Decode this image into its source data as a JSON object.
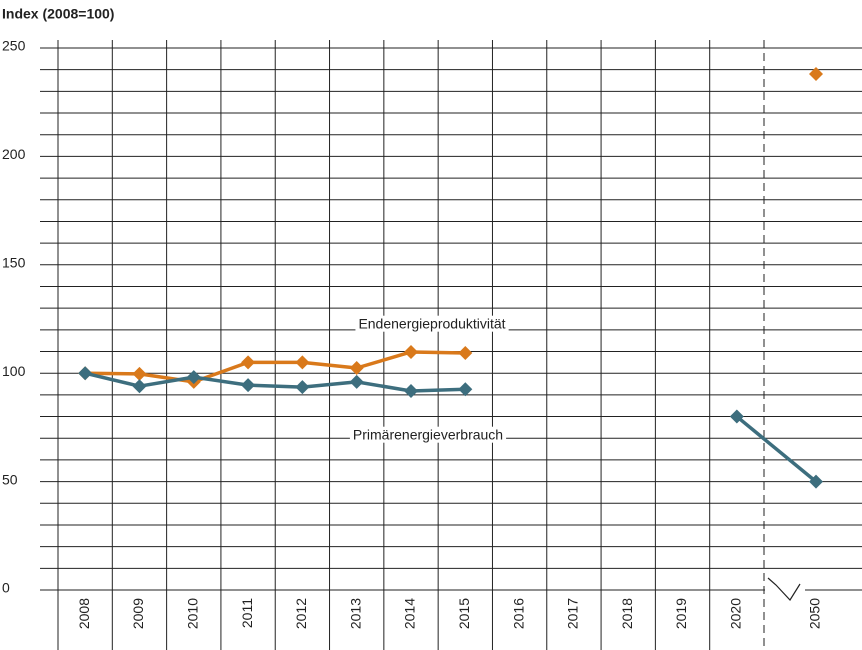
{
  "chart_data": {
    "type": "line",
    "title": "Index (2008=100)",
    "categories": [
      "2008",
      "2009",
      "2010",
      "2011",
      "2012",
      "2013",
      "2014",
      "2015",
      "2016",
      "2017",
      "2018",
      "2019",
      "2020",
      "2050"
    ],
    "series": [
      {
        "name": "Endenergieproduktivität",
        "color": "#d9791b",
        "values": [
          100,
          99.7,
          96,
          105,
          105,
          102.4,
          109.8,
          109.3,
          null,
          null,
          null,
          null,
          null,
          238
        ]
      },
      {
        "name": "Primärenergieverbrauch",
        "color": "#3d6e7e",
        "values": [
          100,
          94,
          98.2,
          94.5,
          93.6,
          96,
          91.8,
          92.6,
          null,
          null,
          null,
          null,
          80,
          50
        ]
      }
    ],
    "ylim": [
      0,
      250
    ],
    "yticks": [
      0,
      50,
      100,
      150,
      200,
      250
    ],
    "minor_yticks": [
      10,
      20,
      30,
      40,
      60,
      70,
      80,
      90,
      110,
      120,
      130,
      140,
      160,
      170,
      180,
      190,
      210,
      220,
      230,
      240
    ],
    "grid": true
  }
}
